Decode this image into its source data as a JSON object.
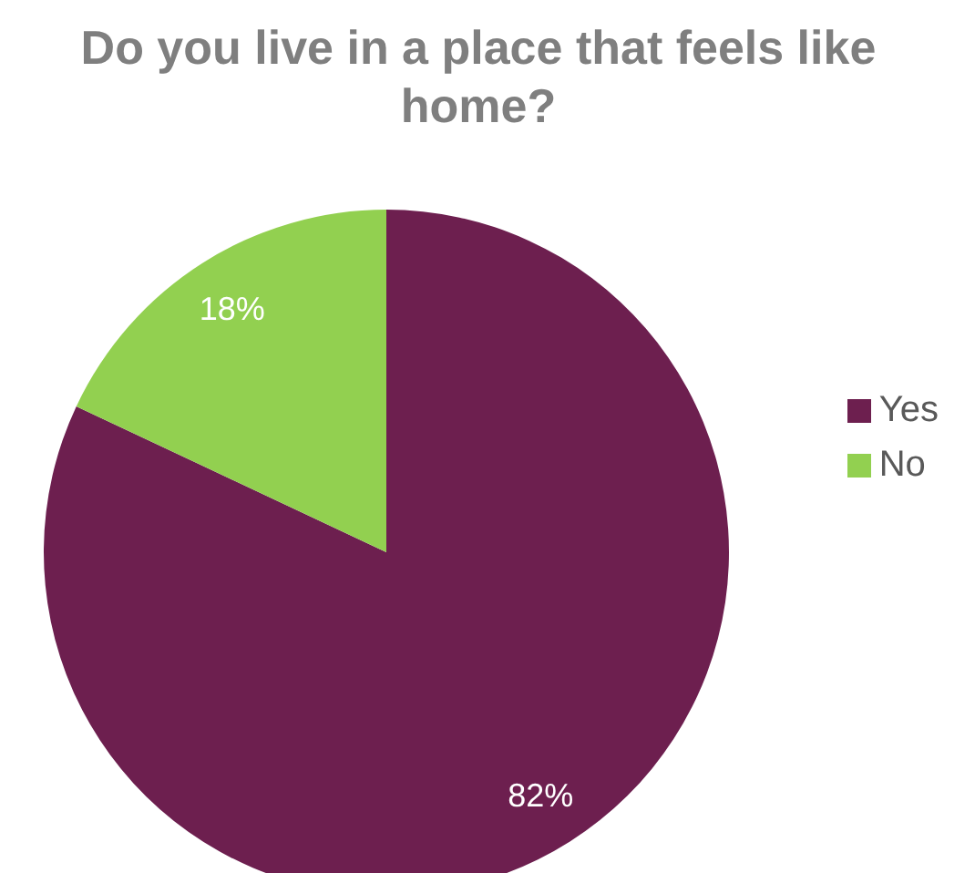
{
  "chart_data": {
    "type": "pie",
    "title": "Do you live in a place that feels like home?",
    "categories": [
      "Yes",
      "No"
    ],
    "values": [
      82,
      18
    ],
    "colors": [
      "#6d1f4f",
      "#92d050"
    ],
    "value_labels": [
      "82%",
      "18%"
    ],
    "legend": "right"
  }
}
